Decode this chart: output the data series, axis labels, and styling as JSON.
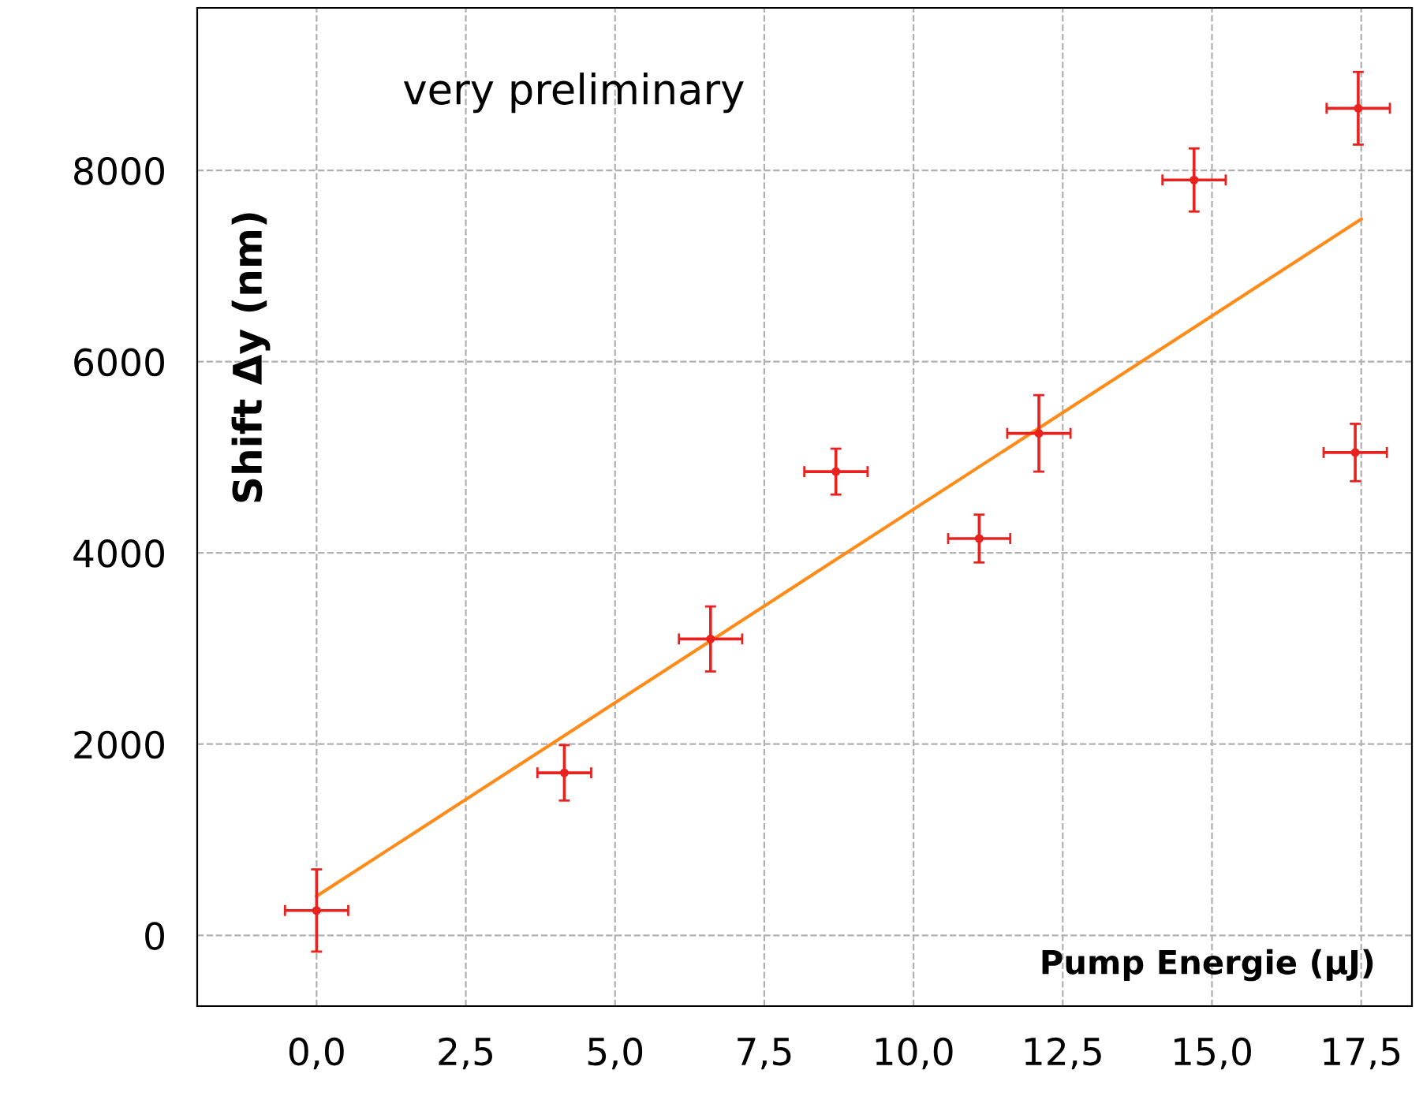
{
  "chart_data": {
    "type": "scatter",
    "xlabel": "Pump Energie (µJ)",
    "ylabel": "Shift Δy (nm)",
    "annotations": [
      "very preliminary"
    ],
    "xlim": [
      -2.0,
      18.35
    ],
    "ylim": [
      -740,
      9700
    ],
    "xticks": [
      {
        "value": 0,
        "label": "0,0"
      },
      {
        "value": 2.5,
        "label": "2,5"
      },
      {
        "value": 5,
        "label": "5,0"
      },
      {
        "value": 7.5,
        "label": "7,5"
      },
      {
        "value": 10,
        "label": "10,0"
      },
      {
        "value": 12.5,
        "label": "12,5"
      },
      {
        "value": 15,
        "label": "15,0"
      },
      {
        "value": 17.5,
        "label": "17,5"
      }
    ],
    "yticks": [
      0,
      2000,
      4000,
      6000,
      8000
    ],
    "grid": true,
    "series": [
      {
        "marker": "circle",
        "color": "#e8231f",
        "x": [
          0.0,
          4.15,
          6.6,
          8.7,
          11.1,
          12.1,
          14.7,
          17.45,
          17.4
        ],
        "values": [
          260,
          1700,
          3100,
          4850,
          4150,
          5250,
          7900,
          8650,
          5050
        ],
        "errors": [
          430,
          290,
          340,
          240,
          250,
          400,
          330,
          380,
          300
        ],
        "xerrors": [
          0.53,
          0.45,
          0.53,
          0.53,
          0.52,
          0.53,
          0.53,
          0.53,
          0.53
        ]
      },
      {
        "type": "line",
        "color": "#ff8c1a",
        "x": [
          0,
          17.5
        ],
        "values": [
          410,
          7490
        ],
        "line_style": "solid"
      }
    ]
  }
}
